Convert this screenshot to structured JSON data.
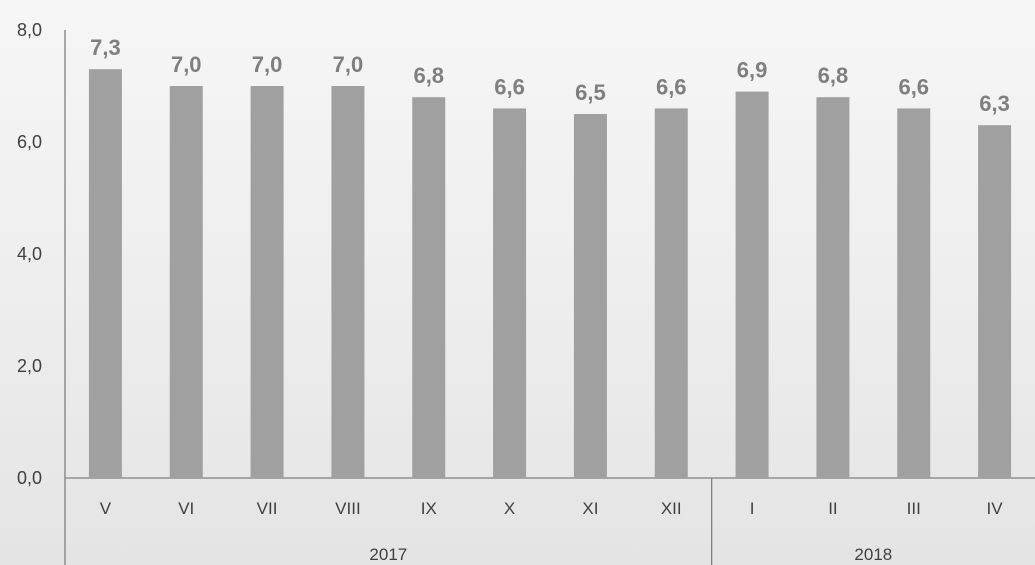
{
  "chart_data": {
    "type": "bar",
    "categories": [
      "V",
      "VI",
      "VII",
      "VIII",
      "IX",
      "X",
      "XI",
      "XII",
      "I",
      "II",
      "III",
      "IV"
    ],
    "values": [
      7.3,
      7.0,
      7.0,
      7.0,
      6.8,
      6.6,
      6.5,
      6.6,
      6.9,
      6.8,
      6.6,
      6.3
    ],
    "value_labels": [
      "7,3",
      "7,0",
      "7,0",
      "7,0",
      "6,8",
      "6,6",
      "6,5",
      "6,6",
      "6,9",
      "6,8",
      "6,6",
      "6,3"
    ],
    "groups": [
      {
        "label": "2017",
        "count": 8
      },
      {
        "label": "2018",
        "count": 4
      }
    ],
    "ylim": [
      0,
      8
    ],
    "yticks": [
      0,
      2,
      4,
      6,
      8
    ],
    "ytick_labels": [
      "0,0",
      "2,0",
      "4,0",
      "6,0",
      "8,0"
    ],
    "title": "",
    "xlabel": "",
    "ylabel": "",
    "grid": false,
    "colors": {
      "bar": "#a0a0a0",
      "label": "#7f7f7f",
      "axis": "#7f7f7f",
      "text": "#404040"
    }
  }
}
